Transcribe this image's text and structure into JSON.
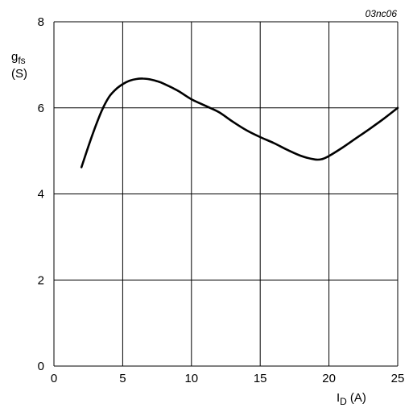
{
  "chart_data": {
    "type": "line",
    "figure_code": "03nc06",
    "ylabel": {
      "symbol": "g",
      "subscript": "fs",
      "unit": "(S)"
    },
    "xlabel": {
      "symbol": "I",
      "subscript": "D",
      "unit": "(A)"
    },
    "xlim": [
      0,
      25
    ],
    "ylim": [
      0,
      8
    ],
    "x_ticks": [
      "0",
      "5",
      "10",
      "15",
      "20",
      "25"
    ],
    "y_ticks": [
      "0",
      "2",
      "4",
      "6",
      "8"
    ],
    "grid": true,
    "line_color": "#000000",
    "series": [
      {
        "x": [
          2.0,
          2.5,
          3.0,
          3.5,
          4.0,
          4.5,
          5.0,
          5.5,
          6.0,
          6.5,
          7.0,
          7.5,
          8.0,
          9.0,
          10.0,
          11.0,
          12.0,
          13.0,
          14.0,
          15.0,
          16.0,
          17.0,
          18.0,
          19.0,
          19.5,
          20.0,
          21.0,
          22.0,
          23.0,
          24.0,
          25.0
        ],
        "y": [
          4.62,
          5.1,
          5.55,
          5.95,
          6.25,
          6.43,
          6.55,
          6.63,
          6.67,
          6.68,
          6.66,
          6.62,
          6.56,
          6.4,
          6.2,
          6.05,
          5.9,
          5.68,
          5.48,
          5.32,
          5.18,
          5.02,
          4.88,
          4.8,
          4.81,
          4.88,
          5.08,
          5.3,
          5.52,
          5.75,
          6.0
        ]
      }
    ]
  }
}
